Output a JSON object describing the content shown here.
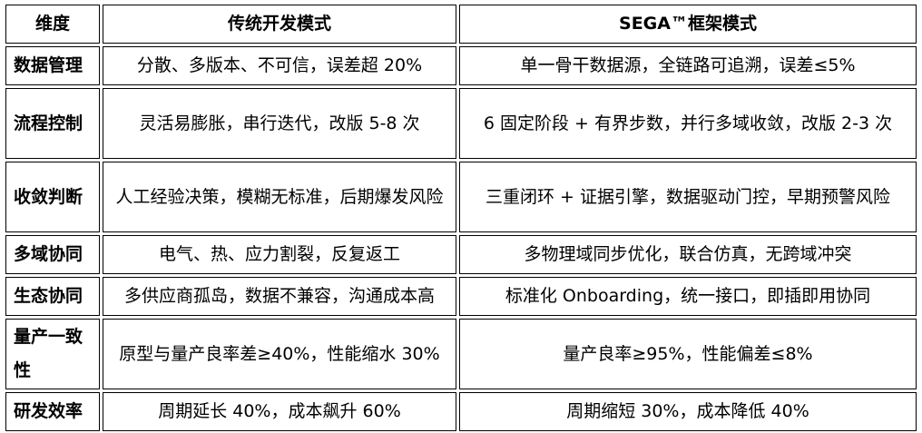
{
  "header": {
    "dimension": "维度",
    "traditional": "传统开发模式",
    "sega": "SEGA™框架模式"
  },
  "rows": [
    {
      "dimension": "数据管理",
      "traditional": "分散、多版本、不可信，误差超 20%",
      "sega": "单一骨干数据源，全链路可追溯，误差≤5%"
    },
    {
      "dimension": "流程控制",
      "traditional": "灵活易膨胀，串行迭代，改版 5-8 次",
      "sega": "6 固定阶段 + 有界步数，并行多域收敛，改版 2-3 次"
    },
    {
      "dimension": "收敛判断",
      "traditional": "人工经验决策，模糊无标准，后期爆发风险",
      "sega": "三重闭环 + 证据引擎，数据驱动门控，早期预警风险"
    },
    {
      "dimension": "多域协同",
      "traditional": "电气、热、应力割裂，反复返工",
      "sega": "多物理域同步优化，联合仿真，无跨域冲突"
    },
    {
      "dimension": "生态协同",
      "traditional": "多供应商孤岛，数据不兼容，沟通成本高",
      "sega": "标准化 Onboarding，统一接口，即插即用协同"
    },
    {
      "dimension": "量产一致性",
      "traditional": "原型与量产良率差≥40%，性能缩水 30%",
      "sega": "量产良率≥95%，性能偏差≤8%"
    },
    {
      "dimension": "研发效率",
      "traditional": "周期延长 40%，成本飙升 60%",
      "sega": "周期缩短 30%，成本降低 40%"
    }
  ]
}
